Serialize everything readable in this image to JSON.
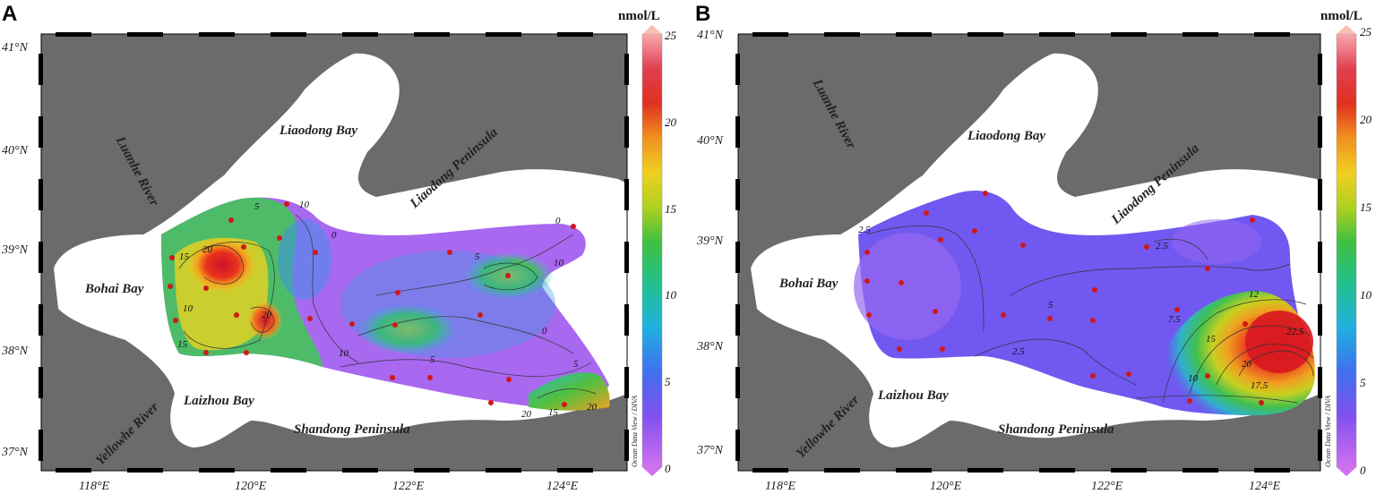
{
  "panels": [
    {
      "letter": "A",
      "lat_labels": [
        "41°N",
        "40°N",
        "39°N",
        "38°N",
        "37°N"
      ],
      "lon_labels": [
        "118°E",
        "120°E",
        "122°E",
        "124°E"
      ],
      "places": {
        "luanhe": "Luanhe River",
        "liaodong_bay": "Liaodong Bay",
        "liaodong_peninsula": "Liaodong Peninsula",
        "bohai_bay": "Bohai Bay",
        "yellowhe": "Yellowhe River",
        "laizhou_bay": "Laizhou Bay",
        "shandong": "Shandong Peninsula"
      },
      "colorbar": {
        "unit": "nmol/L",
        "ticks": [
          "0",
          "5",
          "10",
          "15",
          "20",
          "25"
        ],
        "range": [
          0,
          25
        ]
      },
      "credit": "Ocean Data View / DIVA",
      "contour_labels": [
        "5",
        "10",
        "0",
        "20",
        "15",
        "10",
        "20",
        "15",
        "0",
        "5",
        "10",
        "5",
        "10",
        "0",
        "5",
        "20",
        "15",
        "20"
      ]
    },
    {
      "letter": "B",
      "lat_labels": [
        "41°N",
        "40°N",
        "39°N",
        "38°N",
        "37°N"
      ],
      "lon_labels": [
        "118°E",
        "120°E",
        "122°E",
        "124°E"
      ],
      "places": {
        "luanhe": "Luanhe River",
        "liaodong_bay": "Liaodong Bay",
        "liaodong_peninsula": "Liaodong Peninsula",
        "bohai_bay": "Bohai Bay",
        "yellowhe": "Yellowhe River",
        "laizhou_bay": "Laizhou Bay",
        "shandong": "Shandong Peninsula"
      },
      "colorbar": {
        "unit": "nmol/L",
        "ticks": [
          "0",
          "5",
          "10",
          "15",
          "20",
          "25"
        ],
        "range": [
          0,
          25
        ]
      },
      "credit": "Ocean Data View / DIVA",
      "contour_labels": [
        "2.5",
        "2.5",
        "5",
        "7.5",
        "12",
        "15",
        "22.5",
        "20",
        "17.5",
        "10",
        "2.5"
      ]
    }
  ]
}
